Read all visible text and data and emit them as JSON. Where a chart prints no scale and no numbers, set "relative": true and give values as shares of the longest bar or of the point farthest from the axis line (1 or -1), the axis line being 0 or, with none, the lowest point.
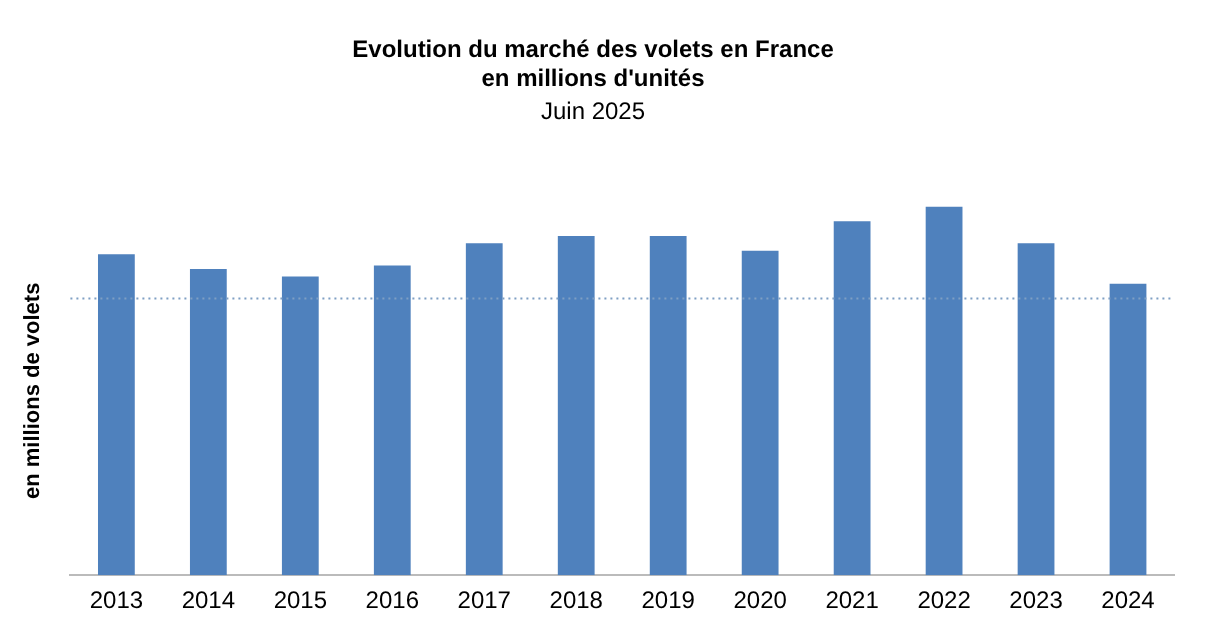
{
  "chart_data": {
    "type": "bar",
    "title": [
      "Evolution du marché des volets en France",
      "en millions d'unités"
    ],
    "subtitle": "Juin 2025",
    "ylabel": "en millions de volets",
    "relative": true,
    "categories": [
      "2013",
      "2014",
      "2015",
      "2016",
      "2017",
      "2018",
      "2019",
      "2020",
      "2021",
      "2022",
      "2023",
      "2024"
    ],
    "values": [
      0.87,
      0.83,
      0.81,
      0.84,
      0.9,
      0.92,
      0.92,
      0.88,
      0.96,
      1,
      0.9,
      0.79
    ],
    "color": "#4f81bd",
    "ref_lines": [
      {
        "axis": "y",
        "value": 0.75,
        "color": "#7f9fc4",
        "line_style": "dotted"
      }
    ],
    "grid": false,
    "legend": false
  }
}
